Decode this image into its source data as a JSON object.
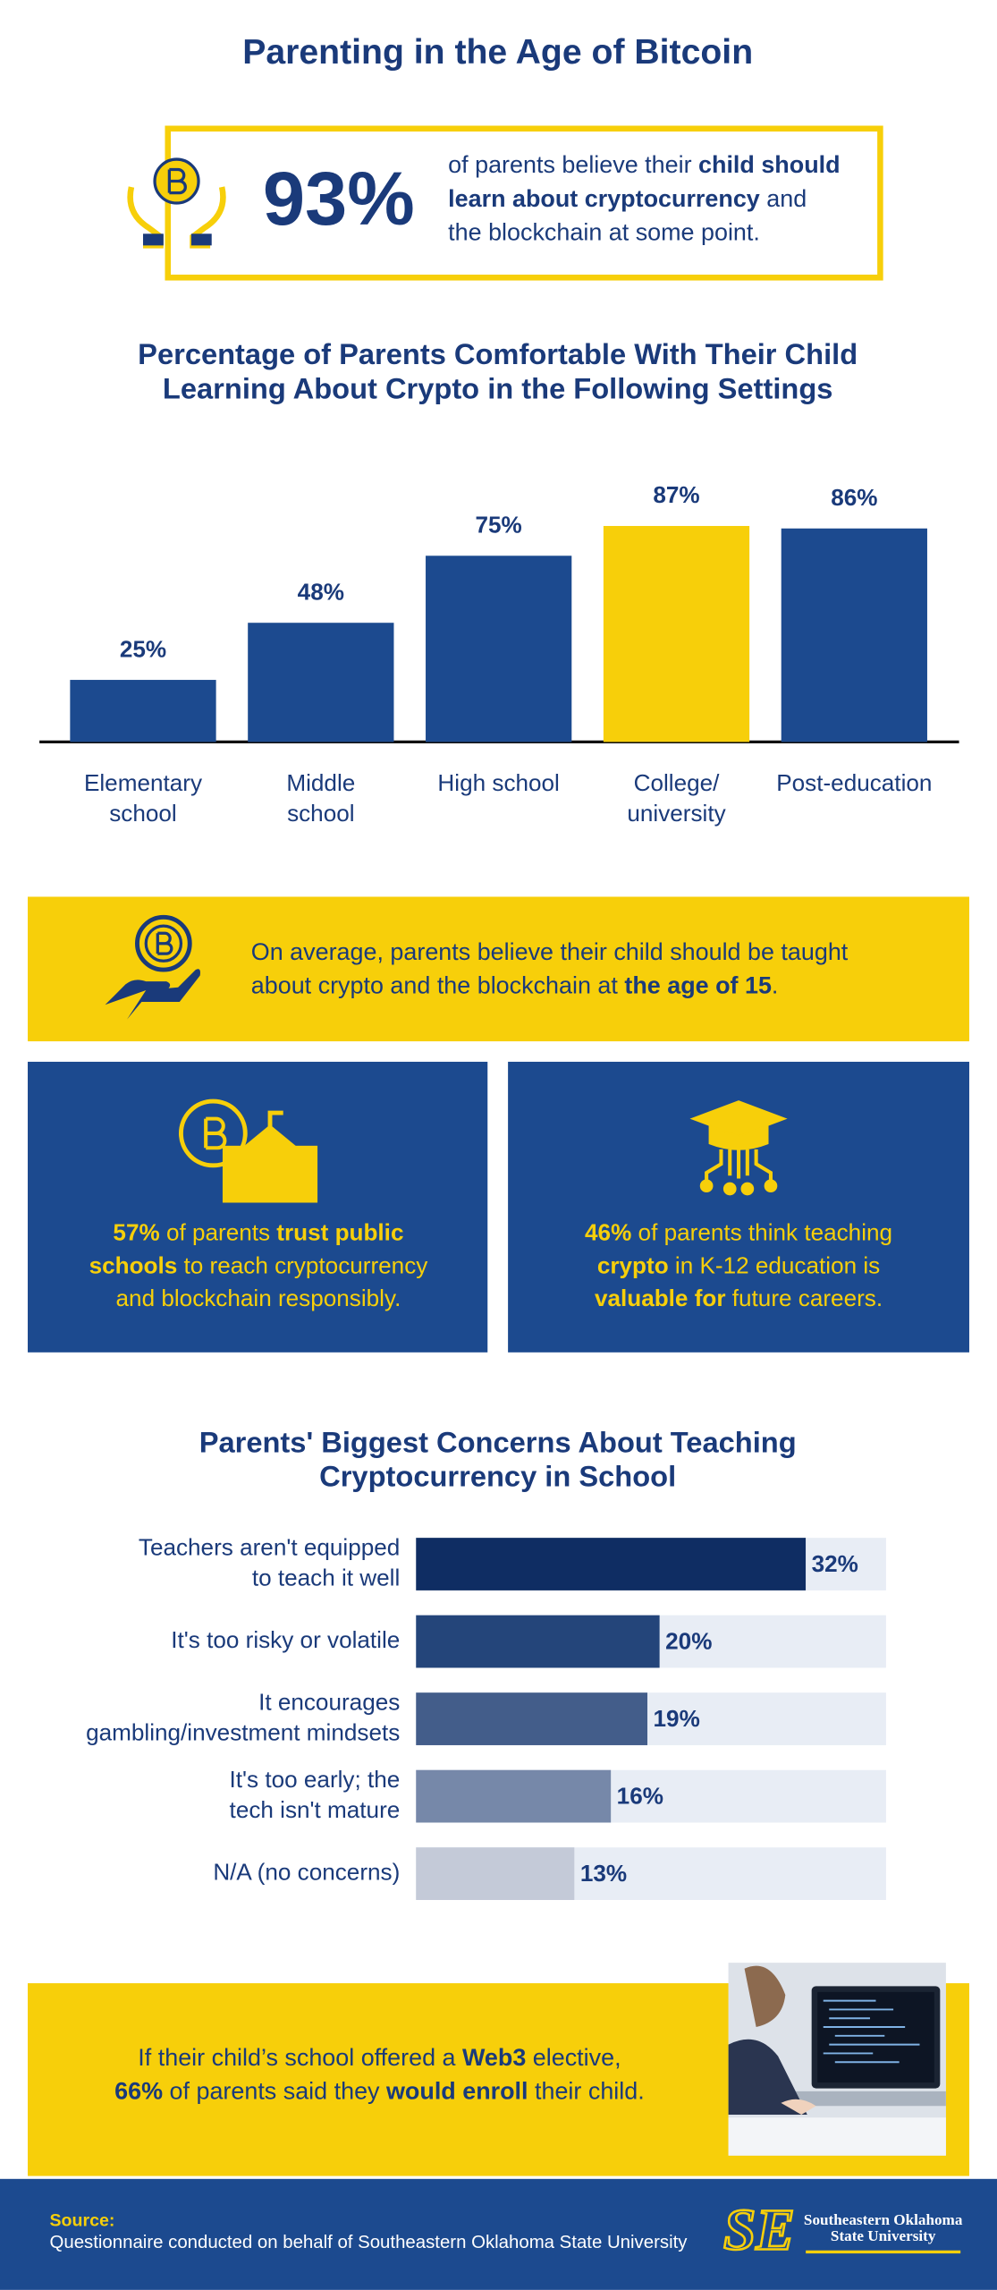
{
  "title": "Parenting in the Age of Bitcoin",
  "headline_stat": {
    "value_text": "93%",
    "lines": [
      [
        {
          "text": "of parents believe their "
        },
        {
          "text": "child should",
          "bold": true
        }
      ],
      [
        {
          "text": "learn about cryptocurrency",
          "bold": true
        },
        {
          "text": " and"
        }
      ],
      [
        {
          "text": "the blockchain at some point."
        }
      ]
    ]
  },
  "chart_data": [
    {
      "type": "bar",
      "orientation": "vertical",
      "title": [
        "Percentage of Parents Comfortable With Their Child",
        "Learning About Crypto in the Following Settings"
      ],
      "categories": [
        "Elementary\nschool",
        "Middle\nschool",
        "High school",
        "College/\nuniversity",
        "Post-education"
      ],
      "values": [
        25,
        48,
        75,
        87,
        86
      ],
      "value_labels": [
        "25%",
        "48%",
        "75%",
        "87%",
        "86%"
      ],
      "colors": [
        "#1c4a8f",
        "#1c4a8f",
        "#1c4a8f",
        "#f7cf0a",
        "#1c4a8f"
      ],
      "ylim": [
        0,
        100
      ]
    },
    {
      "type": "bar",
      "orientation": "horizontal",
      "title": [
        "Parents' Biggest Concerns About Teaching",
        "Cryptocurrency in School"
      ],
      "categories": [
        "Teachers aren't equipped\nto teach it well",
        "It's too risky or volatile",
        "It encourages\ngambling/investment mindsets",
        "It's too early; the\ntech isn't mature",
        "N/A (no concerns)"
      ],
      "values": [
        32,
        20,
        19,
        16,
        13
      ],
      "value_labels": [
        "32%",
        "20%",
        "19%",
        "16%",
        "13%"
      ],
      "colors": [
        "#0f2d63",
        "#24457a",
        "#435d8a",
        "#7688a9",
        "#c4cad8"
      ],
      "track_color": "#e8edf5",
      "xlim": [
        0,
        38.6
      ]
    }
  ],
  "age_callout": {
    "lines": [
      [
        {
          "text": "On average, parents believe their child should be taught"
        }
      ],
      [
        {
          "text": "about crypto and the blockchain at "
        },
        {
          "text": "the age of 15",
          "bold": true
        },
        {
          "text": "."
        }
      ]
    ]
  },
  "stat_cards": [
    {
      "lines": [
        [
          {
            "text": "57%",
            "bold": true
          },
          {
            "text": " of parents "
          },
          {
            "text": "trust public",
            "bold": true
          }
        ],
        [
          {
            "text": "schools",
            "bold": true
          },
          {
            "text": " to reach cryptocurrency"
          }
        ],
        [
          {
            "text": "and blockchain responsibly."
          }
        ]
      ]
    },
    {
      "lines": [
        [
          {
            "text": "46%",
            "bold": true
          },
          {
            "text": " of parents think teaching"
          }
        ],
        [
          {
            "text": "crypto",
            "bold": true
          },
          {
            "text": " in K-12 education is"
          }
        ],
        [
          {
            "text": "valuable for",
            "bold": true
          },
          {
            "text": " future careers."
          }
        ]
      ]
    }
  ],
  "web3_callout": {
    "lines": [
      [
        {
          "text": "If their child’s school offered a "
        },
        {
          "text": "Web3",
          "bold": true
        },
        {
          "text": " elective,"
        }
      ],
      [
        {
          "text": "66%",
          "bold": true
        },
        {
          "text": " of parents said they "
        },
        {
          "text": "would enroll",
          "bold": true
        },
        {
          "text": " their child."
        }
      ]
    ]
  },
  "footer": {
    "source_label": "Source:",
    "source_text": "Questionnaire conducted on behalf of Southeastern Oklahoma State University",
    "logo_monogram": "SE",
    "logo_lines": [
      "Southeastern Oklahoma",
      "State University"
    ]
  }
}
